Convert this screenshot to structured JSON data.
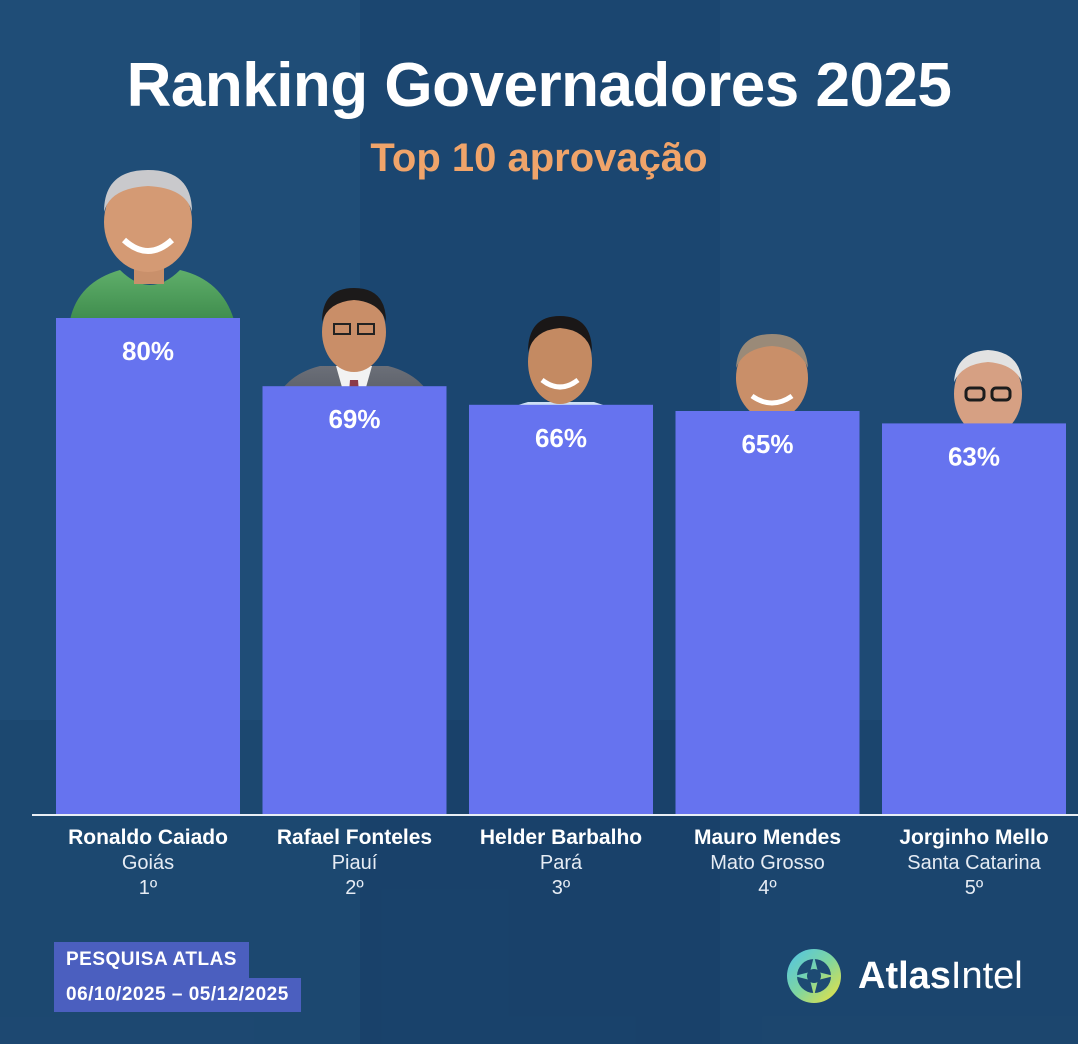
{
  "title": "Ranking Governadores 2025",
  "subtitle": "Top 10 aprovação",
  "colors": {
    "bar": "#6673ef",
    "background": "#1d4a73",
    "subtitle": "#f0a46a",
    "badge": "#4b5fbf"
  },
  "chart_data": {
    "type": "bar",
    "title": "Ranking Governadores 2025",
    "subtitle": "Top 10 aprovação",
    "categories": [
      "Ronaldo Caiado",
      "Rafael Fonteles",
      "Helder Barbalho",
      "Mauro Mendes",
      "Jorginho Mello"
    ],
    "states": [
      "Goiás",
      "Piauí",
      "Pará",
      "Mato Grosso",
      "Santa Catarina"
    ],
    "ranks": [
      "1º",
      "2º",
      "3º",
      "4º",
      "5º"
    ],
    "values": [
      80,
      69,
      66,
      65,
      63
    ],
    "value_labels": [
      "80%",
      "69%",
      "66%",
      "65%",
      "63%"
    ],
    "ylim": [
      0,
      100
    ],
    "grid": false,
    "legend": "none"
  },
  "footer": {
    "source_line1": "PESQUISA ATLAS",
    "source_line2": "06/10/2025 – 05/12/2025",
    "brand_part1": "Atlas",
    "brand_part2": "Intel"
  }
}
